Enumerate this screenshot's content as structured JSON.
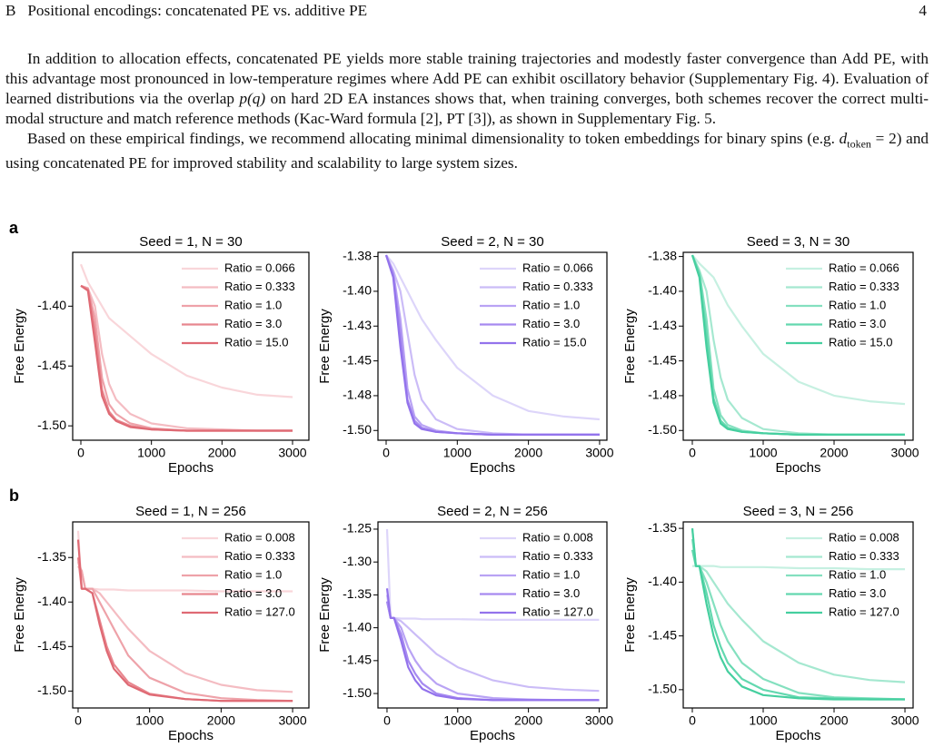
{
  "header": {
    "section": "B",
    "title": "Positional encodings: concatenated PE vs. additive PE",
    "page": "4"
  },
  "paragraphs": [
    [
      "In addition to allocation effects, concatenated PE yields more stable training trajectories and modestly faster convergence than Add PE, with this advantage most pronounced in low-temperature regimes where Add PE can exhibit oscillatory behavior (Supplementary Fig. 4). Evaluation of learned distributions via the overlap ",
      "p(q)",
      " on hard 2D EA instances shows that, when training converges, both schemes recover the correct multi-modal structure and match reference methods (Kac-Ward formula [2], PT [3]), as shown in Supplementary Fig. 5."
    ],
    [
      "Based on these empirical findings, we recommend allocating minimal dimensionality to token embeddings for binary spins (e.g. ",
      "d",
      "token",
      " = 2) and using concatenated PE for improved stability and scalability to large system sizes."
    ]
  ],
  "panel_labels": [
    "a",
    "b"
  ],
  "chart_data": [
    {
      "type": "line",
      "title": "Seed = 1, N = 30",
      "xlabel": "Epochs",
      "ylabel": "Free Energy",
      "x": [
        0,
        100,
        200,
        300,
        400,
        500,
        700,
        1000,
        1500,
        2000,
        2500,
        3000
      ],
      "xlim": [
        -116,
        3232
      ],
      "xticks": [
        0,
        1000,
        2000,
        3000
      ],
      "ylim": [
        -1.512,
        -1.355
      ],
      "yticks": [
        {
          "value": -1.4,
          "label": "-1.40"
        },
        -1.45,
        {
          "value": -1.5,
          "label": "-1.50"
        }
      ],
      "series": [
        {
          "name": "Ratio = 0.066",
          "color": "#f9d6da",
          "values": [
            -1.365,
            -1.38,
            -1.39,
            -1.4,
            -1.41,
            -1.415,
            -1.425,
            -1.44,
            -1.458,
            -1.468,
            -1.474,
            -1.476
          ]
        },
        {
          "name": "Ratio = 0.333",
          "color": "#f4bcc2",
          "values": [
            -1.383,
            -1.385,
            -1.4,
            -1.44,
            -1.465,
            -1.478,
            -1.49,
            -1.498,
            -1.502,
            -1.503,
            -1.504,
            -1.504
          ]
        },
        {
          "name": "Ratio = 1.0",
          "color": "#eea2a9",
          "values": [
            -1.383,
            -1.385,
            -1.41,
            -1.46,
            -1.482,
            -1.49,
            -1.498,
            -1.502,
            -1.504,
            -1.504,
            -1.504,
            -1.504
          ]
        },
        {
          "name": "Ratio = 3.0",
          "color": "#e8878f",
          "values": [
            -1.383,
            -1.386,
            -1.42,
            -1.47,
            -1.488,
            -1.495,
            -1.5,
            -1.503,
            -1.504,
            -1.504,
            -1.504,
            -1.504
          ]
        },
        {
          "name": "Ratio = 15.0",
          "color": "#df6a74",
          "values": [
            -1.383,
            -1.387,
            -1.43,
            -1.475,
            -1.49,
            -1.496,
            -1.501,
            -1.503,
            -1.504,
            -1.504,
            -1.504,
            -1.504
          ]
        }
      ]
    },
    {
      "type": "line",
      "title": "Seed = 2, N = 30",
      "xlabel": "Epochs",
      "ylabel": "Free Energy",
      "x": [
        0,
        100,
        200,
        300,
        400,
        500,
        700,
        1000,
        1500,
        2000,
        2500,
        3000
      ],
      "xlim": [
        -115,
        3103
      ],
      "xticks": [
        0,
        1000,
        2000,
        3000
      ],
      "ylim": [
        -1.507,
        -1.372
      ],
      "yticks": [
        {
          "value": -1.375,
          "label": "-1.38"
        },
        {
          "value": -1.4,
          "label": "-1.40"
        },
        {
          "value": -1.425,
          "label": "-1.43"
        },
        -1.45,
        {
          "value": -1.475,
          "label": "-1.48"
        },
        {
          "value": -1.5,
          "label": "-1.50"
        }
      ],
      "series": [
        {
          "name": "Ratio = 0.066",
          "color": "#ddd5fa",
          "values": [
            -1.374,
            -1.38,
            -1.39,
            -1.4,
            -1.41,
            -1.42,
            -1.435,
            -1.455,
            -1.475,
            -1.486,
            -1.49,
            -1.492
          ]
        },
        {
          "name": "Ratio = 0.333",
          "color": "#cbbcf7",
          "values": [
            -1.374,
            -1.385,
            -1.4,
            -1.43,
            -1.46,
            -1.478,
            -1.492,
            -1.499,
            -1.502,
            -1.503,
            -1.503,
            -1.503
          ]
        },
        {
          "name": "Ratio = 1.0",
          "color": "#b9a3f4",
          "values": [
            -1.374,
            -1.386,
            -1.42,
            -1.47,
            -1.49,
            -1.496,
            -1.5,
            -1.502,
            -1.503,
            -1.503,
            -1.503,
            -1.503
          ]
        },
        {
          "name": "Ratio = 3.0",
          "color": "#a68af0",
          "values": [
            -1.374,
            -1.388,
            -1.43,
            -1.478,
            -1.493,
            -1.498,
            -1.501,
            -1.502,
            -1.503,
            -1.503,
            -1.503,
            -1.503
          ]
        },
        {
          "name": "Ratio = 15.0",
          "color": "#9373ec",
          "values": [
            -1.374,
            -1.39,
            -1.44,
            -1.48,
            -1.495,
            -1.499,
            -1.501,
            -1.502,
            -1.503,
            -1.503,
            -1.503,
            -1.503
          ]
        }
      ]
    },
    {
      "type": "line",
      "title": "Seed = 3, N = 30",
      "xlabel": "Epochs",
      "ylabel": "Free Energy",
      "x": [
        0,
        100,
        200,
        300,
        400,
        500,
        700,
        1000,
        1500,
        2000,
        2500,
        3000
      ],
      "xlim": [
        -128,
        3115
      ],
      "xticks": [
        0,
        1000,
        2000,
        3000
      ],
      "ylim": [
        -1.507,
        -1.372
      ],
      "yticks": [
        {
          "value": -1.375,
          "label": "-1.38"
        },
        {
          "value": -1.4,
          "label": "-1.40"
        },
        {
          "value": -1.425,
          "label": "-1.43"
        },
        -1.45,
        {
          "value": -1.475,
          "label": "-1.48"
        },
        {
          "value": -1.5,
          "label": "-1.50"
        }
      ],
      "series": [
        {
          "name": "Ratio = 0.066",
          "color": "#c6f0e1",
          "values": [
            -1.374,
            -1.38,
            -1.385,
            -1.39,
            -1.4,
            -1.41,
            -1.425,
            -1.445,
            -1.465,
            -1.475,
            -1.479,
            -1.481
          ]
        },
        {
          "name": "Ratio = 0.333",
          "color": "#a5e8d0",
          "values": [
            -1.374,
            -1.385,
            -1.4,
            -1.435,
            -1.462,
            -1.478,
            -1.491,
            -1.499,
            -1.502,
            -1.503,
            -1.503,
            -1.503
          ]
        },
        {
          "name": "Ratio = 1.0",
          "color": "#84e0bf",
          "values": [
            -1.374,
            -1.386,
            -1.42,
            -1.47,
            -1.489,
            -1.496,
            -1.5,
            -1.502,
            -1.503,
            -1.503,
            -1.503,
            -1.503
          ]
        },
        {
          "name": "Ratio = 3.0",
          "color": "#63d8af",
          "values": [
            -1.374,
            -1.388,
            -1.43,
            -1.477,
            -1.493,
            -1.498,
            -1.501,
            -1.502,
            -1.503,
            -1.503,
            -1.503,
            -1.503
          ]
        },
        {
          "name": "Ratio = 15.0",
          "color": "#45cf9f",
          "values": [
            -1.374,
            -1.39,
            -1.44,
            -1.48,
            -1.495,
            -1.499,
            -1.501,
            -1.502,
            -1.503,
            -1.503,
            -1.503,
            -1.503
          ]
        }
      ]
    },
    {
      "type": "line",
      "title": "Seed = 1, N = 256",
      "xlabel": "Epochs",
      "ylabel": "Free Energy",
      "x": [
        0,
        50,
        100,
        200,
        300,
        400,
        500,
        700,
        1000,
        1500,
        2000,
        2500,
        3000
      ],
      "xlim": [
        -76,
        3228
      ],
      "xticks": [
        0,
        1000,
        2000,
        3000
      ],
      "ylim": [
        -1.519,
        -1.31
      ],
      "yticks": [
        -1.35,
        {
          "value": -1.4,
          "label": "-1.40"
        },
        -1.45,
        {
          "value": -1.5,
          "label": "-1.50"
        }
      ],
      "series": [
        {
          "name": "Ratio = 0.008",
          "color": "#f9d6da",
          "values": [
            -1.32,
            -1.385,
            -1.385,
            -1.385,
            -1.386,
            -1.386,
            -1.386,
            -1.387,
            -1.387,
            -1.387,
            -1.388,
            -1.388,
            -1.388
          ]
        },
        {
          "name": "Ratio = 0.333",
          "color": "#f4bcc2",
          "values": [
            -1.355,
            -1.365,
            -1.385,
            -1.385,
            -1.39,
            -1.4,
            -1.41,
            -1.43,
            -1.455,
            -1.48,
            -1.493,
            -1.499,
            -1.501
          ]
        },
        {
          "name": "Ratio = 1.0",
          "color": "#eea2a9",
          "values": [
            -1.36,
            -1.365,
            -1.385,
            -1.385,
            -1.4,
            -1.415,
            -1.43,
            -1.46,
            -1.485,
            -1.502,
            -1.508,
            -1.51,
            -1.511
          ]
        },
        {
          "name": "Ratio = 3.0",
          "color": "#e8878f",
          "values": [
            -1.35,
            -1.385,
            -1.385,
            -1.39,
            -1.42,
            -1.45,
            -1.47,
            -1.49,
            -1.503,
            -1.509,
            -1.511,
            -1.511,
            -1.511
          ]
        },
        {
          "name": "Ratio = 127.0",
          "color": "#df6a74",
          "values": [
            -1.33,
            -1.385,
            -1.385,
            -1.39,
            -1.425,
            -1.455,
            -1.475,
            -1.493,
            -1.504,
            -1.509,
            -1.511,
            -1.511,
            -1.511
          ]
        }
      ]
    },
    {
      "type": "line",
      "title": "Seed = 2, N = 256",
      "xlabel": "Epochs",
      "ylabel": "Free Energy",
      "x": [
        0,
        50,
        100,
        200,
        300,
        400,
        500,
        700,
        1000,
        1500,
        2000,
        2500,
        3000
      ],
      "xlim": [
        -128,
        3110
      ],
      "xticks": [
        0,
        1000,
        2000,
        3000
      ],
      "ylim": [
        -1.522,
        -1.239
      ],
      "yticks": [
        -1.25,
        {
          "value": -1.3,
          "label": "-1.30"
        },
        -1.35,
        {
          "value": -1.4,
          "label": "-1.40"
        },
        -1.45,
        {
          "value": -1.5,
          "label": "-1.50"
        }
      ],
      "series": [
        {
          "name": "Ratio = 0.008",
          "color": "#ddd5fa",
          "values": [
            -1.25,
            -1.385,
            -1.385,
            -1.386,
            -1.386,
            -1.386,
            -1.387,
            -1.387,
            -1.387,
            -1.388,
            -1.388,
            -1.388,
            -1.388
          ]
        },
        {
          "name": "Ratio = 0.333",
          "color": "#cbbcf7",
          "values": [
            -1.35,
            -1.385,
            -1.385,
            -1.39,
            -1.4,
            -1.41,
            -1.42,
            -1.44,
            -1.46,
            -1.48,
            -1.49,
            -1.494,
            -1.496
          ]
        },
        {
          "name": "Ratio = 1.0",
          "color": "#b9a3f4",
          "values": [
            -1.36,
            -1.385,
            -1.385,
            -1.4,
            -1.43,
            -1.45,
            -1.465,
            -1.485,
            -1.5,
            -1.507,
            -1.509,
            -1.51,
            -1.51
          ]
        },
        {
          "name": "Ratio = 3.0",
          "color": "#a68af0",
          "values": [
            -1.36,
            -1.385,
            -1.385,
            -1.41,
            -1.45,
            -1.47,
            -1.485,
            -1.5,
            -1.507,
            -1.51,
            -1.51,
            -1.51,
            -1.51
          ]
        },
        {
          "name": "Ratio = 127.0",
          "color": "#9373ec",
          "values": [
            -1.34,
            -1.385,
            -1.385,
            -1.42,
            -1.46,
            -1.48,
            -1.493,
            -1.503,
            -1.508,
            -1.51,
            -1.51,
            -1.51,
            -1.51
          ]
        }
      ]
    },
    {
      "type": "line",
      "title": "Seed = 3, N = 256",
      "xlabel": "Epochs",
      "ylabel": "Free Energy",
      "x": [
        0,
        50,
        100,
        200,
        300,
        400,
        500,
        700,
        1000,
        1500,
        2000,
        2500,
        3000
      ],
      "xlim": [
        -128,
        3115
      ],
      "xticks": [
        0,
        1000,
        2000,
        3000
      ],
      "ylim": [
        -1.517,
        -1.344
      ],
      "yticks": [
        -1.35,
        {
          "value": -1.4,
          "label": "-1.40"
        },
        -1.45,
        {
          "value": -1.5,
          "label": "-1.50"
        }
      ],
      "series": [
        {
          "name": "Ratio = 0.008",
          "color": "#c6f0e1",
          "values": [
            -1.385,
            -1.385,
            -1.385,
            -1.385,
            -1.385,
            -1.386,
            -1.386,
            -1.386,
            -1.386,
            -1.387,
            -1.387,
            -1.388,
            -1.388
          ]
        },
        {
          "name": "Ratio = 0.333",
          "color": "#a5e8d0",
          "values": [
            -1.35,
            -1.385,
            -1.385,
            -1.39,
            -1.4,
            -1.41,
            -1.42,
            -1.435,
            -1.455,
            -1.475,
            -1.486,
            -1.491,
            -1.493
          ]
        },
        {
          "name": "Ratio = 1.0",
          "color": "#84e0bf",
          "values": [
            -1.36,
            -1.385,
            -1.385,
            -1.4,
            -1.42,
            -1.44,
            -1.455,
            -1.475,
            -1.49,
            -1.503,
            -1.507,
            -1.508,
            -1.509
          ]
        },
        {
          "name": "Ratio = 3.0",
          "color": "#63d8af",
          "values": [
            -1.37,
            -1.385,
            -1.385,
            -1.41,
            -1.44,
            -1.46,
            -1.475,
            -1.49,
            -1.5,
            -1.507,
            -1.508,
            -1.509,
            -1.509
          ]
        },
        {
          "name": "Ratio = 127.0",
          "color": "#45cf9f",
          "values": [
            -1.35,
            -1.385,
            -1.385,
            -1.42,
            -1.45,
            -1.47,
            -1.483,
            -1.497,
            -1.505,
            -1.508,
            -1.509,
            -1.509,
            -1.509
          ]
        }
      ]
    }
  ]
}
